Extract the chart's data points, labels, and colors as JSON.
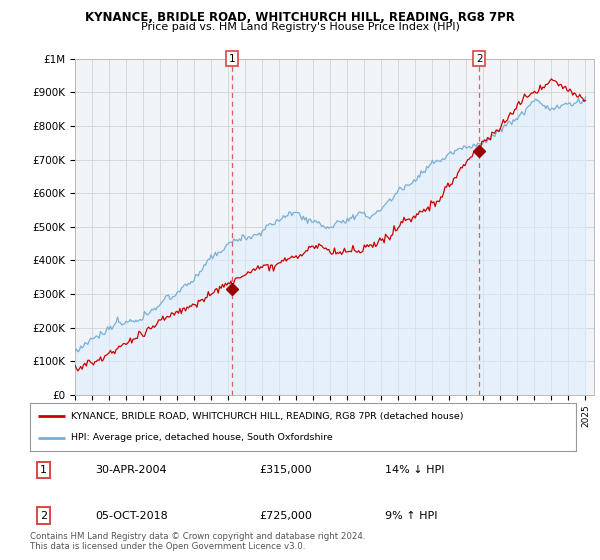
{
  "title": "KYNANCE, BRIDLE ROAD, WHITCHURCH HILL, READING, RG8 7PR",
  "subtitle": "Price paid vs. HM Land Registry's House Price Index (HPI)",
  "ylabel_ticks": [
    "£1M",
    "£900K",
    "£800K",
    "£700K",
    "£600K",
    "£500K",
    "£400K",
    "£300K",
    "£200K",
    "£100K",
    "£0"
  ],
  "ytick_values": [
    1000000,
    900000,
    800000,
    700000,
    600000,
    500000,
    400000,
    300000,
    200000,
    100000,
    0
  ],
  "sale1_date": "30-APR-2004",
  "sale1_price": 315000,
  "sale1_pct": "14%",
  "sale1_direction": "↓",
  "sale1_year_idx": 111,
  "sale2_date": "05-OCT-2018",
  "sale2_price": 725000,
  "sale2_pct": "9%",
  "sale2_direction": "↑",
  "sale2_year_idx": 285,
  "legend_line1": "KYNANCE, BRIDLE ROAD, WHITCHURCH HILL, READING, RG8 7PR (detached house)",
  "legend_line2": "HPI: Average price, detached house, South Oxfordshire",
  "footnote": "Contains HM Land Registry data © Crown copyright and database right 2024.\nThis data is licensed under the Open Government Licence v3.0.",
  "price_color": "#cc0000",
  "hpi_color": "#7bafd4",
  "hpi_fill_color": "#ddeeff",
  "marker_color": "#990000",
  "dashed_line_color": "#dd4444",
  "background_color": "#ffffff",
  "plot_bg_color": "#f0f4f8",
  "grid_color": "#cccccc",
  "xmin": 1995,
  "xmax": 2025.5,
  "ymin": 0,
  "ymax": 1000000
}
